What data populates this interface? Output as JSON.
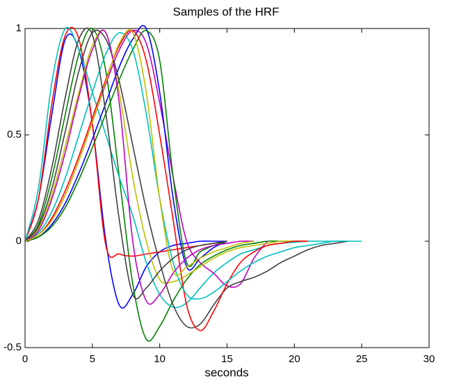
{
  "chart_data": {
    "type": "line",
    "title": "Samples of the HRF",
    "x_label": "seconds",
    "x": [
      0,
      1,
      2,
      3,
      4,
      5,
      6,
      7,
      8,
      9,
      10,
      11,
      12,
      13,
      14,
      15,
      16,
      17,
      18,
      19,
      20,
      21,
      22,
      23,
      24,
      25,
      26
    ],
    "xlim": [
      0,
      30
    ],
    "xticks": [
      0,
      5,
      10,
      15,
      20,
      25,
      30
    ],
    "ylim": [
      -0.5,
      1
    ],
    "yticks": [
      -0.5,
      0,
      0.5,
      1
    ],
    "series": [
      {
        "color": "#0000ff",
        "values": [
          0,
          0.2,
          0.6,
          0.95,
          0.9,
          0.55,
          0.0,
          -0.3,
          -0.25,
          -0.12,
          -0.05,
          -0.02,
          -0.01,
          0,
          0,
          0,
          null,
          null,
          null,
          null,
          null,
          null,
          null,
          null,
          null,
          null,
          null
        ]
      },
      {
        "color": "#008000",
        "values": [
          0,
          0.08,
          0.3,
          0.6,
          0.88,
          1.0,
          0.8,
          0.3,
          -0.2,
          -0.46,
          -0.4,
          -0.28,
          -0.18,
          -0.11,
          -0.07,
          -0.04,
          -0.02,
          -0.01,
          0,
          0,
          0,
          null,
          null,
          null,
          null,
          null,
          null
        ]
      },
      {
        "color": "#ff0000",
        "values": [
          0,
          0.2,
          0.65,
          0.97,
          0.95,
          0.55,
          -0.02,
          -0.06,
          -0.07,
          -0.06,
          -0.05,
          -0.04,
          -0.03,
          -0.02,
          -0.01,
          0,
          null,
          null,
          null,
          null,
          null,
          null,
          null,
          null,
          null,
          null,
          null
        ]
      },
      {
        "color": "#00bfbf",
        "values": [
          0,
          0.25,
          0.75,
          1.0,
          0.9,
          0.7,
          0.5,
          0.3,
          0.12,
          -0.1,
          -0.25,
          -0.31,
          -0.29,
          -0.22,
          -0.15,
          -0.1,
          -0.06,
          -0.04,
          -0.02,
          -0.01,
          -0.005,
          0,
          0,
          0,
          0,
          null,
          null
        ]
      },
      {
        "color": "#bf00bf",
        "values": [
          0,
          0.03,
          0.1,
          0.22,
          0.38,
          0.56,
          0.74,
          0.9,
          0.99,
          0.93,
          0.65,
          0.3,
          0.0,
          -0.1,
          -0.15,
          -0.21,
          -0.2,
          -0.08,
          0,
          null,
          null,
          null,
          null,
          null,
          null,
          null,
          null
        ]
      },
      {
        "color": "#bfbf00",
        "values": [
          0,
          0.06,
          0.22,
          0.45,
          0.7,
          0.92,
          0.98,
          0.7,
          0.3,
          0.0,
          -0.18,
          -0.19,
          -0.16,
          -0.12,
          -0.08,
          -0.05,
          -0.03,
          -0.02,
          -0.01,
          0,
          0,
          0,
          null,
          null,
          null,
          null,
          null
        ]
      },
      {
        "color": "#404040",
        "values": [
          0,
          0.07,
          0.25,
          0.52,
          0.8,
          0.98,
          0.95,
          0.75,
          0.45,
          0.15,
          -0.1,
          -0.3,
          -0.4,
          -0.39,
          -0.3,
          -0.22,
          -0.19,
          -0.17,
          -0.14,
          -0.1,
          -0.07,
          -0.04,
          -0.02,
          -0.01,
          0,
          null,
          null
        ]
      },
      {
        "color": "#0000ff",
        "values": [
          0,
          0.02,
          0.08,
          0.18,
          0.32,
          0.48,
          0.65,
          0.82,
          0.95,
          1.0,
          0.7,
          0.2,
          -0.12,
          -0.08,
          -0.03,
          0,
          null,
          null,
          null,
          null,
          null,
          null,
          null,
          null,
          null,
          null,
          null
        ]
      },
      {
        "color": "#008000",
        "values": [
          0,
          0.02,
          0.07,
          0.16,
          0.29,
          0.44,
          0.6,
          0.76,
          0.9,
          0.99,
          0.85,
          0.3,
          -0.1,
          -0.05,
          -0.02,
          0,
          null,
          null,
          null,
          null,
          null,
          null,
          null,
          null,
          null,
          null,
          null
        ]
      },
      {
        "color": "#ff0000",
        "values": [
          0,
          0.03,
          0.11,
          0.24,
          0.4,
          0.58,
          0.76,
          0.92,
          0.99,
          0.85,
          0.5,
          0.1,
          -0.3,
          -0.42,
          -0.33,
          -0.2,
          -0.1,
          -0.05,
          -0.02,
          -0.01,
          0,
          0,
          null,
          null,
          null,
          null,
          null
        ]
      },
      {
        "color": "#00bfbf",
        "values": [
          0,
          0.04,
          0.14,
          0.3,
          0.5,
          0.7,
          0.88,
          0.98,
          0.9,
          0.6,
          0.2,
          -0.1,
          -0.25,
          -0.27,
          -0.24,
          -0.19,
          -0.14,
          -0.1,
          -0.07,
          -0.05,
          -0.03,
          -0.02,
          -0.01,
          0,
          0,
          0,
          null
        ]
      },
      {
        "color": "#bf00bf",
        "values": [
          0,
          0.05,
          0.2,
          0.42,
          0.68,
          0.9,
          0.98,
          0.65,
          0.0,
          -0.28,
          -0.25,
          -0.15,
          -0.08,
          -0.04,
          -0.02,
          -0.01,
          0,
          0,
          null,
          null,
          null,
          null,
          null,
          null,
          null,
          null,
          null
        ]
      },
      {
        "color": "#bfbf00",
        "values": [
          0,
          0.03,
          0.1,
          0.22,
          0.38,
          0.56,
          0.75,
          0.93,
          0.98,
          0.7,
          0.2,
          -0.14,
          -0.12,
          -0.08,
          -0.05,
          -0.03,
          -0.01,
          0,
          null,
          null,
          null,
          null,
          null,
          null,
          null,
          null,
          null
        ]
      },
      {
        "color": "#404040",
        "values": [
          0,
          0.1,
          0.35,
          0.68,
          0.95,
          0.97,
          0.6,
          0.1,
          -0.25,
          -0.22,
          -0.14,
          -0.08,
          -0.04,
          -0.02,
          -0.01,
          0,
          null,
          null,
          null,
          null,
          null,
          null,
          null,
          null,
          null,
          null,
          null
        ]
      }
    ]
  }
}
